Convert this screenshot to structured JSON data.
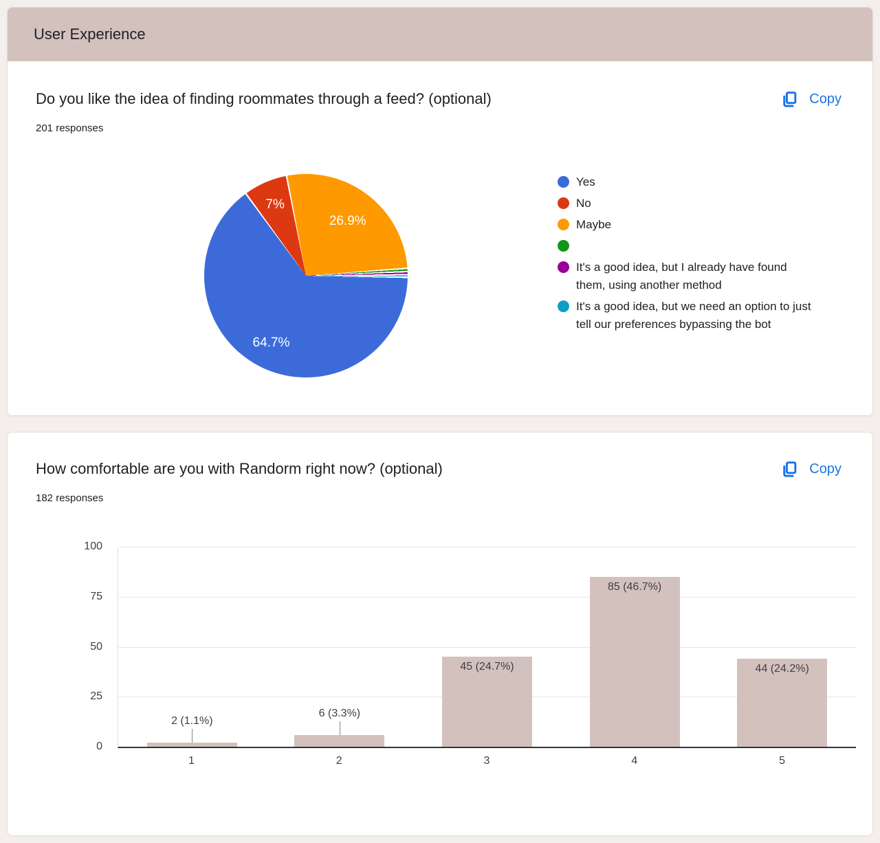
{
  "page": {
    "section_title": "User Experience"
  },
  "cards": [
    {
      "title": "Do you like the idea of finding roommates through a feed? (optional)",
      "responses": "201 responses",
      "copy_label": "Copy"
    },
    {
      "title": "How comfortable are you with Randorm right now? (optional)",
      "responses": "182 responses",
      "copy_label": "Copy"
    }
  ],
  "colors": {
    "accent_blue": "#1a73e8",
    "theme_mauve": "#d3c1be",
    "page_background": "#f4efed"
  },
  "chart_data": [
    {
      "type": "pie",
      "title": "Do you like the idea of finding roommates through a feed? (optional)",
      "legend_position": "right",
      "slices": [
        {
          "label": "Yes",
          "value": 64.7,
          "display": "64.7%",
          "color": "#3c6bd9"
        },
        {
          "label": "No",
          "value": 7.0,
          "display": "7%",
          "color": "#dc3912"
        },
        {
          "label": "Maybe",
          "value": 26.9,
          "display": "26.9%",
          "color": "#ff9900"
        },
        {
          "label": "",
          "value": 0.5,
          "display": "",
          "color": "#109618"
        },
        {
          "label": "It's a good idea, but I already have found them, using another method",
          "value": 0.5,
          "display": "",
          "color": "#990099"
        },
        {
          "label": "It's a good idea, but we need an option to just tell our preferences bypassing the bot",
          "value": 0.4,
          "display": "",
          "color": "#0f9fc6"
        }
      ]
    },
    {
      "type": "bar",
      "title": "How comfortable are you with Randorm right now? (optional)",
      "categories": [
        "1",
        "2",
        "3",
        "4",
        "5"
      ],
      "values": [
        2,
        6,
        45,
        85,
        44
      ],
      "labels": [
        "2 (1.1%)",
        "6 (3.3%)",
        "45 (24.7%)",
        "85 (46.7%)",
        "44 (24.2%)"
      ],
      "yticks": [
        0,
        25,
        50,
        75,
        100
      ],
      "ylim": [
        0,
        100
      ],
      "bar_color": "#d3c1be",
      "grid": true,
      "xlabel": "",
      "ylabel": ""
    }
  ]
}
